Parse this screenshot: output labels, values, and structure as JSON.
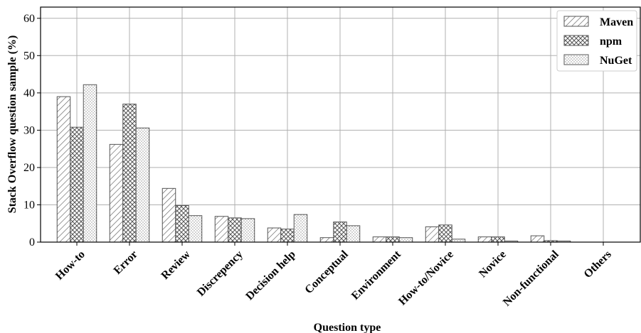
{
  "chart_data": {
    "type": "bar",
    "xlabel": "Question type",
    "ylabel": "Stack Overflow question sample (%)",
    "ylim": [
      0,
      63
    ],
    "yticks": [
      0,
      10,
      20,
      30,
      40,
      50,
      60
    ],
    "grid": true,
    "legend_position": "top-right",
    "categories": [
      "How-to",
      "Error",
      "Review",
      "Discrepency",
      "Decision help",
      "Conceptual",
      "Environment",
      "How-to/Novice",
      "Novice",
      "Non-functional",
      "Others"
    ],
    "series": [
      {
        "name": "Maven",
        "pattern": "diagonal-hatch",
        "values": [
          39.0,
          26.2,
          14.4,
          6.9,
          3.8,
          1.2,
          1.4,
          4.1,
          1.4,
          1.7,
          0.0
        ]
      },
      {
        "name": "npm",
        "pattern": "cross-hatch",
        "values": [
          30.8,
          37.0,
          9.8,
          6.5,
          3.5,
          5.4,
          1.4,
          4.6,
          1.4,
          0.4,
          0.0
        ]
      },
      {
        "name": "NuGet",
        "pattern": "dots",
        "values": [
          42.2,
          30.6,
          7.1,
          6.3,
          7.4,
          4.4,
          1.2,
          0.8,
          0.3,
          0.3,
          0.0
        ]
      }
    ],
    "colors": {
      "bar_stroke": "#555555",
      "grid": "#b0b0b0",
      "axis": "#000000"
    }
  }
}
